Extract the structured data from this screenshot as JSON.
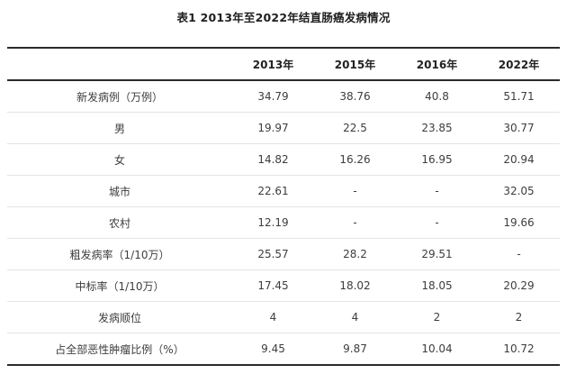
{
  "title": "表1 2013年至2022年结直肠癌发病情况",
  "table": {
    "columns": [
      "",
      "2013年",
      "2015年",
      "2016年",
      "2022年"
    ],
    "rows": [
      {
        "label": "新发病例（万例）",
        "values": [
          "34.79",
          "38.76",
          "40.8",
          "51.71"
        ]
      },
      {
        "label": "男",
        "values": [
          "19.97",
          "22.5",
          "23.85",
          "30.77"
        ]
      },
      {
        "label": "女",
        "values": [
          "14.82",
          "16.26",
          "16.95",
          "20.94"
        ]
      },
      {
        "label": "城市",
        "values": [
          "22.61",
          "-",
          "-",
          "32.05"
        ]
      },
      {
        "label": "农村",
        "values": [
          "12.19",
          "-",
          "-",
          "19.66"
        ]
      },
      {
        "label": "粗发病率（1/10万）",
        "values": [
          "25.57",
          "28.2",
          "29.51",
          "-"
        ]
      },
      {
        "label": "中标率（1/10万）",
        "values": [
          "17.45",
          "18.02",
          "18.05",
          "20.29"
        ]
      },
      {
        "label": "发病顺位",
        "values": [
          "4",
          "4",
          "2",
          "2"
        ]
      },
      {
        "label": "占全部恶性肿瘤比例（%）",
        "values": [
          "9.45",
          "9.87",
          "10.04",
          "10.72"
        ]
      }
    ]
  },
  "colors": {
    "background": "#ffffff",
    "heavy_rule": "#2b2b2b",
    "light_rule": "#e4e4e4",
    "text": "#3d3d3d",
    "title_text": "#1f1f1f"
  }
}
